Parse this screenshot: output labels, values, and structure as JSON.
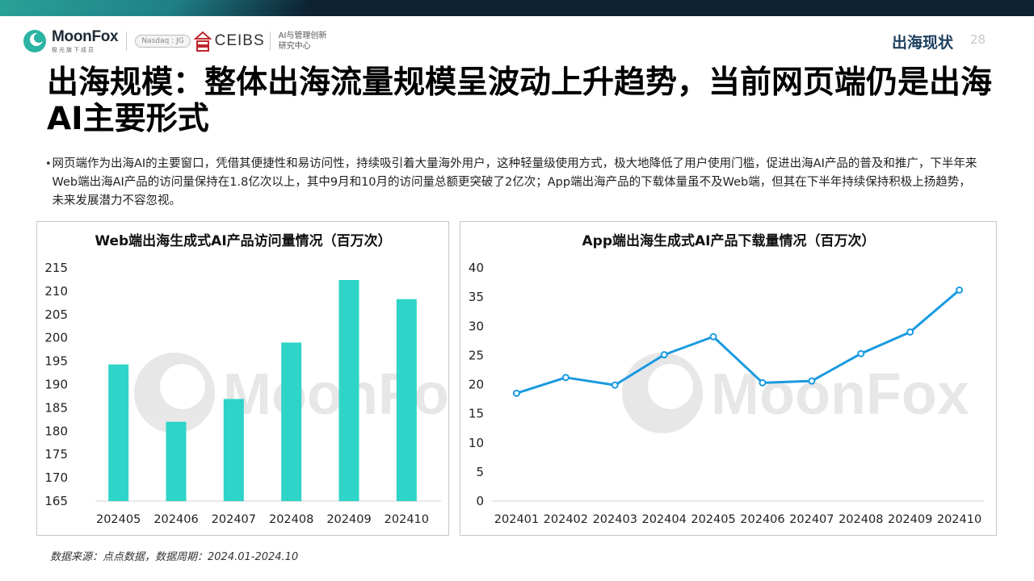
{
  "header": {
    "brand": "MoonFox",
    "brand_sub": "极光旗下成员",
    "nasdaq": "Nasdaq : JG",
    "partner": "CEIBS",
    "partner_sub_1": "AI与管理创新",
    "partner_sub_2": "研究中心",
    "section": "出海现状",
    "page_number": "28"
  },
  "title": "出海规模：整体出海流量规模呈波动上升趋势，当前网页端仍是出海AI主要形式",
  "bullet": "网页端作为出海AI的主要窗口，凭借其便捷性和易访问性，持续吸引着大量海外用户，这种轻量级使用方式，极大地降低了用户使用门槛，促进出海AI产品的普及和推广，下半年来Web端出海AI产品的访问量保持在1.8亿次以上，其中9月和10月的访问量总额更突破了2亿次；App端出海产品的下载体量虽不及Web端，但其在下半年持续保持积极上扬趋势，未来发展潜力不容忽视。",
  "watermark": "MoonFox",
  "colors": {
    "bar": "#2dd4c7",
    "line": "#1a9ae0",
    "title_dark": "#1c3f5e"
  },
  "chart_data": [
    {
      "type": "bar",
      "title": "Web端出海生成式AI产品访问量情况（百万次）",
      "categories": [
        "202405",
        "202406",
        "202407",
        "202408",
        "202409",
        "202410"
      ],
      "values": [
        194.3,
        182.0,
        186.9,
        199.0,
        212.4,
        208.3
      ],
      "ylim": [
        165,
        215
      ],
      "yticks": [
        165,
        170,
        175,
        180,
        185,
        190,
        195,
        200,
        205,
        210,
        215
      ],
      "xlabel": "",
      "ylabel": "",
      "grid": false
    },
    {
      "type": "line",
      "title": "App端出海生成式AI产品下载量情况（百万次）",
      "categories": [
        "202401",
        "202402",
        "202403",
        "202404",
        "202405",
        "202406",
        "202407",
        "202408",
        "202409",
        "202410"
      ],
      "values": [
        18.5,
        21.2,
        19.9,
        25.1,
        28.2,
        20.3,
        20.6,
        25.3,
        29.0,
        36.2
      ],
      "ylim": [
        0,
        40
      ],
      "yticks": [
        0,
        5,
        10,
        15,
        20,
        25,
        30,
        35,
        40
      ],
      "xlabel": "",
      "ylabel": "",
      "grid": false
    }
  ],
  "source": "数据来源：点点数据，数据周期：2024.01-2024.10"
}
